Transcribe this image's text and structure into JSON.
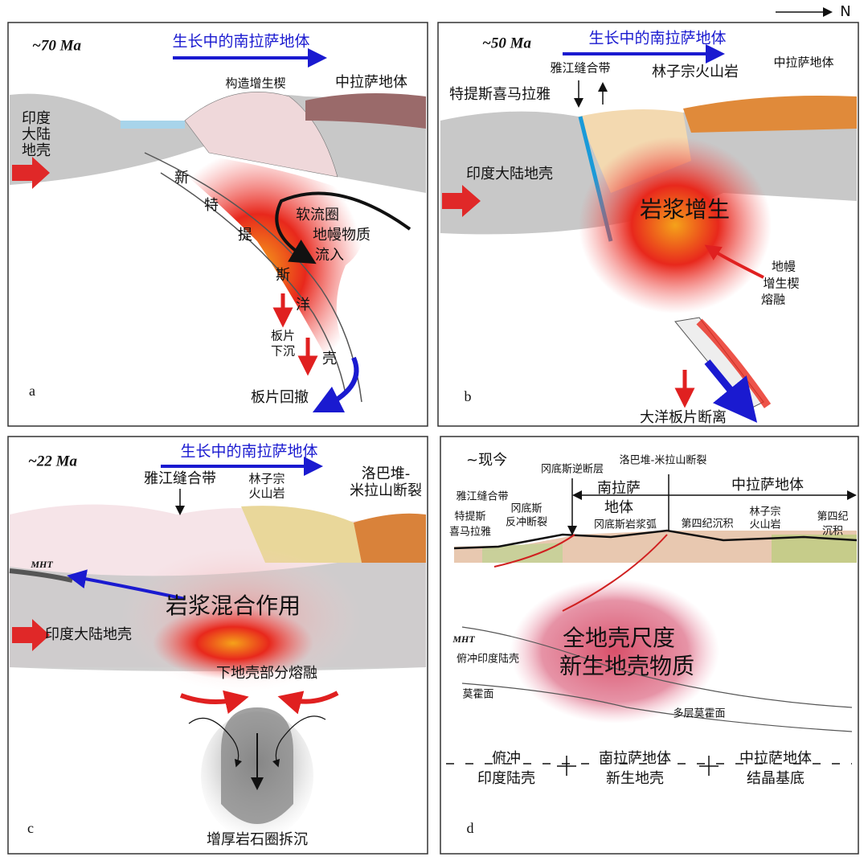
{
  "north": "N",
  "panel_a": {
    "letter": "a",
    "age": "~70 Ma",
    "title": "生长中的南拉萨地体",
    "wedge": "构造增生楔",
    "central_lhasa": "中拉萨地体",
    "indian_crust": [
      "印度",
      "大陆",
      "地壳"
    ],
    "ocean_crust": [
      "新",
      "特",
      "提",
      "斯",
      "洋",
      "壳"
    ],
    "asthenosphere": [
      "软流圈",
      "地幔物质",
      "流入"
    ],
    "slab_sink": [
      "板片",
      "下沉"
    ],
    "rollback": "板片回撤"
  },
  "panel_b": {
    "letter": "b",
    "age": "~50 Ma",
    "title": "生长中的南拉萨地体",
    "suture": "雅江缝合带",
    "linzizong": "林子宗火山岩",
    "central_lhasa": "中拉萨地体",
    "tethyan_himalaya": "特提斯喜马拉雅",
    "indian_crust": "印度大陆地壳",
    "accretion": "岩浆增生",
    "mantle_wedge": [
      "地幔",
      "增生楔",
      "熔融"
    ],
    "breakoff": "大洋板片断离"
  },
  "panel_c": {
    "letter": "c",
    "age": "~22 Ma",
    "title": "生长中的南拉萨地体",
    "suture": "雅江缝合带",
    "linzizong": [
      "林子宗",
      "火山岩"
    ],
    "fault": [
      "洛巴堆-",
      "米拉山断裂"
    ],
    "mht": "MHT",
    "mixing": "岩浆混合作用",
    "indian_crust": "印度大陆地壳",
    "partial_melting": "下地壳部分熔融",
    "delamination": "增厚岩石圈拆沉"
  },
  "panel_d": {
    "letter": "d",
    "age": "~现今",
    "gangdese_thrust": "冈底斯逆断层",
    "fault": "洛巴堆-米拉山断裂",
    "south_lhasa": [
      "南拉萨",
      "地体"
    ],
    "central_lhasa": "中拉萨地体",
    "suture": "雅江缝合带",
    "tethyan_himalaya": [
      "特提斯",
      "喜马拉雅"
    ],
    "backthrust": [
      "冈底斯",
      "反冲断裂"
    ],
    "arc": "冈底斯岩浆弧",
    "quaternary1": "第四纪沉积",
    "linzizong": [
      "林子宗",
      "火山岩"
    ],
    "quaternary2": [
      "第四纪",
      "沉积"
    ],
    "mht": "MHT",
    "subducted_crust": "俯冲印度陆壳",
    "juvenile": [
      "全地壳尺度",
      "新生地壳物质"
    ],
    "moho": "莫霍面",
    "multi_moho": "多层莫霍面",
    "bottom": [
      [
        "俯冲",
        "印度陆壳"
      ],
      [
        "南拉萨地体",
        "新生地壳"
      ],
      [
        "中拉萨地体",
        "结晶基底"
      ]
    ]
  }
}
